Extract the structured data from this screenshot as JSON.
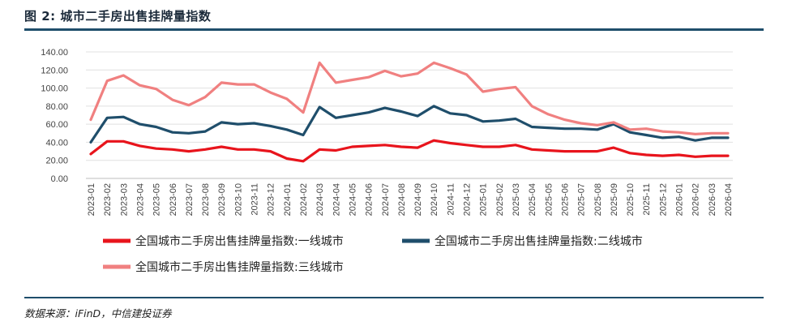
{
  "figure": {
    "title": "图 2: 城市二手房出售挂牌量指数",
    "source": "数据来源：iFinD，中信建投证券"
  },
  "chart_data": {
    "type": "line",
    "ylim": [
      0,
      140
    ],
    "yticks": [
      "0.00",
      "20.00",
      "40.00",
      "60.00",
      "80.00",
      "100.00",
      "120.00",
      "140.00"
    ],
    "grid": true,
    "legend_position": "bottom",
    "x": [
      "2023-01",
      "2023-02",
      "2023-03",
      "2023-04",
      "2023-05",
      "2023-06",
      "2023-07",
      "2023-08",
      "2023-09",
      "2023-10",
      "2023-11",
      "2023-12",
      "2024-01",
      "2024-02",
      "2024-03",
      "2024-04",
      "2024-05",
      "2024-06",
      "2024-07",
      "2024-08",
      "2024-09",
      "2024-10",
      "2024-11",
      "2024-12",
      "2025-01",
      "2025-02",
      "2025-03",
      "2025-04",
      "2025-05",
      "2025-06",
      "2025-07",
      "2025-08",
      "2025-09",
      "2025-10",
      "2025-11",
      "2025-12",
      "2026-01",
      "2026-02",
      "2026-03",
      "2026-04"
    ],
    "series": [
      {
        "name": "全国城市二手房出售挂牌量指数:一线城市",
        "color": "#e8141c",
        "values": [
          27,
          41,
          41,
          36,
          33,
          32,
          30,
          32,
          35,
          32,
          32,
          30,
          22,
          19,
          32,
          31,
          35,
          36,
          37,
          35,
          34,
          42,
          39,
          37,
          35,
          35,
          37,
          32,
          31,
          30,
          30,
          30,
          34,
          28,
          26,
          25,
          26,
          24,
          25,
          25
        ]
      },
      {
        "name": "全国城市二手房出售挂牌量指数:二线城市",
        "color": "#1f4e6b",
        "values": [
          40,
          67,
          68,
          60,
          57,
          51,
          50,
          52,
          62,
          60,
          61,
          58,
          54,
          48,
          79,
          67,
          70,
          73,
          78,
          74,
          69,
          80,
          72,
          70,
          63,
          64,
          66,
          57,
          56,
          55,
          55,
          54,
          60,
          51,
          48,
          45,
          46,
          42,
          45,
          45
        ]
      },
      {
        "name": "全国城市二手房出售挂牌量指数:三线城市",
        "color": "#f08080",
        "values": [
          65,
          108,
          114,
          103,
          99,
          87,
          81,
          90,
          106,
          104,
          104,
          95,
          88,
          73,
          128,
          106,
          109,
          112,
          119,
          113,
          116,
          128,
          122,
          115,
          96,
          99,
          101,
          80,
          71,
          65,
          61,
          59,
          62,
          54,
          55,
          52,
          51,
          49,
          50,
          50
        ]
      }
    ]
  }
}
